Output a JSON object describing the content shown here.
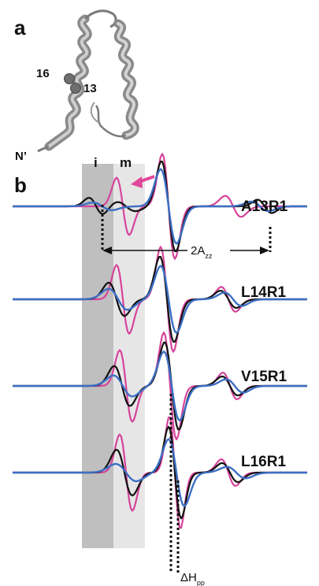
{
  "panel_a": {
    "letter": "a",
    "residue_labels": [
      "16",
      "13"
    ],
    "terminus_label": "N’"
  },
  "panel_b": {
    "letter": "b",
    "band_labels": [
      "i",
      "m"
    ],
    "measure_azz": {
      "main": "2A",
      "sub": "zz"
    },
    "measure_hpp": {
      "main": "ΔH",
      "sub": "pp"
    },
    "spectra": [
      {
        "label": "A13R1"
      },
      {
        "label": "L14R1"
      },
      {
        "label": "V15R1"
      },
      {
        "label": "L16R1"
      }
    ]
  },
  "colors": {
    "black_trace": "#111111",
    "magenta_trace": "#d6449b",
    "blue_trace": "#3c6fc4",
    "band_immobile": "#bfbfbf",
    "band_mobile": "#e6e6e6",
    "arrow": "#e0489a",
    "protein": "#8c8c8c"
  }
}
